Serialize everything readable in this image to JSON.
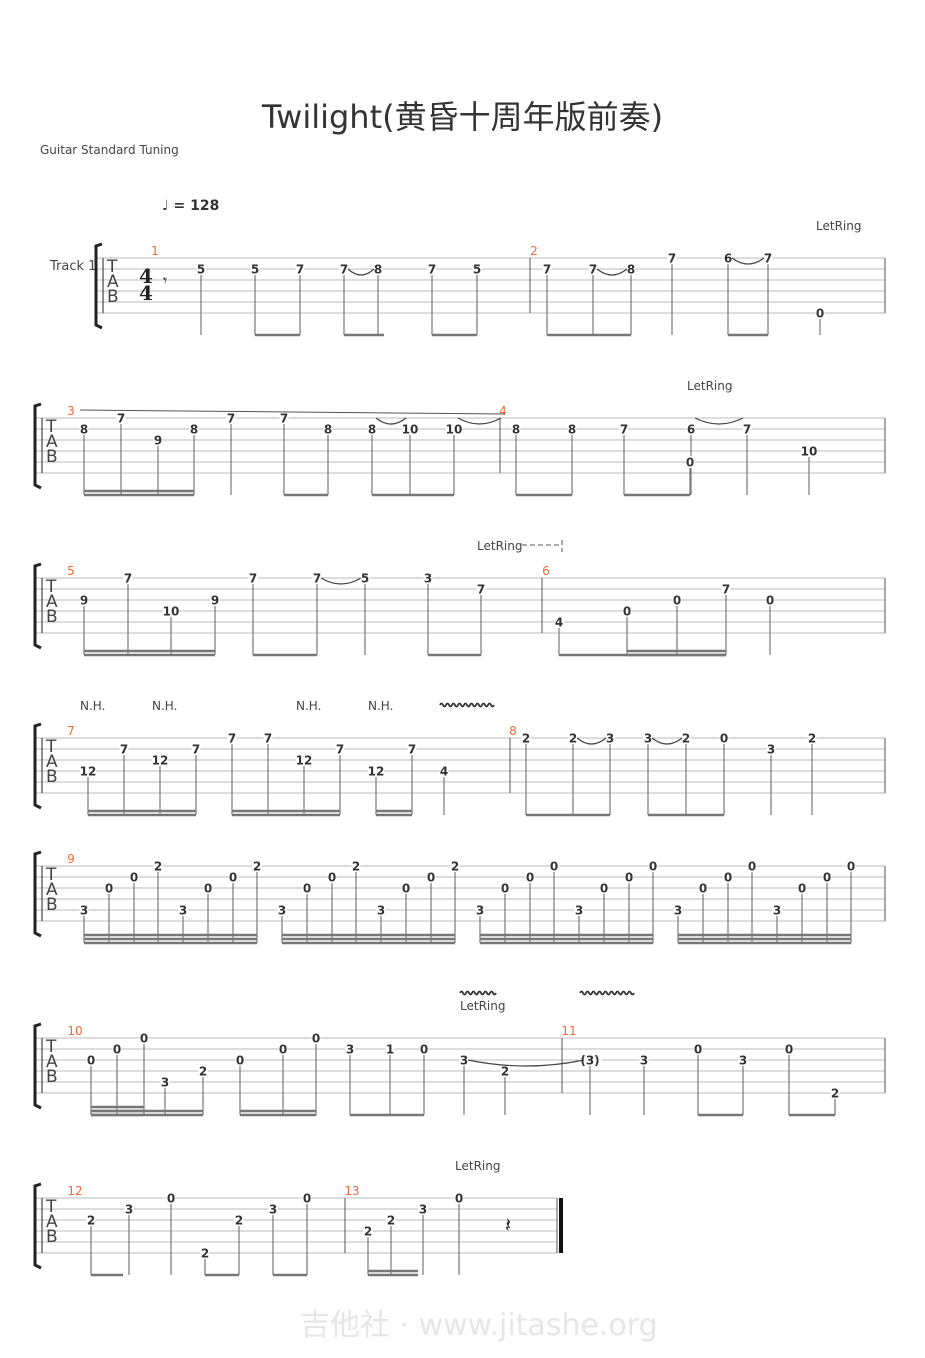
{
  "title": "Twilight(黄昏十周年版前奏)",
  "tuning": "Guitar Standard Tuning",
  "tempo": {
    "note": "quarter",
    "bpm": "= 128"
  },
  "track_name": "Track 1",
  "time_signature": [
    "4",
    "4"
  ],
  "tab_clef": [
    "T",
    "A",
    "B"
  ],
  "watermark": "吉他社 · www.jitashe.org",
  "colors": {
    "measure_number": "#f26b3a",
    "notes": "#333333",
    "staff": "#bbbbbb"
  },
  "annotations": {
    "let_ring": "LetRing",
    "natural_harmonic": "N.H."
  },
  "rows": [
    {
      "measures": [
        {
          "number": "1",
          "notes": [
            {
              "s": 2,
              "f": "5"
            },
            {
              "s": 2,
              "f": "5"
            },
            {
              "s": 2,
              "f": "7"
            },
            {
              "s": 2,
              "f": "7"
            },
            {
              "s": 2,
              "f": "8"
            },
            {
              "s": 2,
              "f": "7"
            },
            {
              "s": 2,
              "f": "5"
            }
          ]
        },
        {
          "number": "2",
          "notes": [
            {
              "s": 2,
              "f": "7"
            },
            {
              "s": 2,
              "f": "7"
            },
            {
              "s": 2,
              "f": "8"
            },
            {
              "s": 1,
              "f": "7"
            },
            {
              "s": 1,
              "f": "6"
            },
            {
              "s": 1,
              "f": "7"
            },
            {
              "s": 6,
              "f": "0"
            }
          ]
        }
      ]
    },
    {
      "measures": [
        {
          "number": "3",
          "notes": [
            {
              "s": 2,
              "f": "8"
            },
            {
              "s": 1,
              "f": "7"
            },
            {
              "s": 3,
              "f": "9"
            },
            {
              "s": 2,
              "f": "8"
            },
            {
              "s": 1,
              "f": "7"
            },
            {
              "s": 1,
              "f": "7"
            },
            {
              "s": 2,
              "f": "8"
            },
            {
              "s": 2,
              "f": "8"
            },
            {
              "s": 2,
              "f": "10"
            },
            {
              "s": 2,
              "f": "10"
            }
          ]
        },
        {
          "number": "4",
          "notes": [
            {
              "s": 2,
              "f": "8"
            },
            {
              "s": 2,
              "f": "8"
            },
            {
              "s": 2,
              "f": "7"
            },
            {
              "s": 5,
              "f": "0"
            },
            {
              "s": 2,
              "f": "6"
            },
            {
              "s": 2,
              "f": "7"
            },
            {
              "s": 4,
              "f": "10"
            }
          ]
        }
      ]
    },
    {
      "measures": [
        {
          "number": "5",
          "notes": [
            {
              "s": 3,
              "f": "9"
            },
            {
              "s": 1,
              "f": "7"
            },
            {
              "s": 4,
              "f": "10"
            },
            {
              "s": 3,
              "f": "9"
            },
            {
              "s": 1,
              "f": "7"
            },
            {
              "s": 1,
              "f": "7"
            },
            {
              "s": 1,
              "f": "5"
            },
            {
              "s": 1,
              "f": "3"
            },
            {
              "s": 2,
              "f": "7"
            }
          ]
        },
        {
          "number": "6",
          "notes": [
            {
              "s": 5,
              "f": "4"
            },
            {
              "s": 4,
              "f": "0"
            },
            {
              "s": 3,
              "f": "0"
            },
            {
              "s": 2,
              "f": "7"
            },
            {
              "s": 3,
              "f": "0"
            }
          ]
        }
      ]
    },
    {
      "measures": [
        {
          "number": "7",
          "notes": [
            {
              "s": 4,
              "f": "12"
            },
            {
              "s": 2,
              "f": "7"
            },
            {
              "s": 3,
              "f": "12"
            },
            {
              "s": 2,
              "f": "7"
            },
            {
              "s": 1,
              "f": "7"
            },
            {
              "s": 1,
              "f": "7"
            },
            {
              "s": 3,
              "f": "12"
            },
            {
              "s": 2,
              "f": "7"
            },
            {
              "s": 4,
              "f": "12"
            },
            {
              "s": 2,
              "f": "7"
            },
            {
              "s": 4,
              "f": "4"
            }
          ]
        },
        {
          "number": "8",
          "notes": [
            {
              "s": 1,
              "f": "2"
            },
            {
              "s": 1,
              "f": "2"
            },
            {
              "s": 1,
              "f": "3"
            },
            {
              "s": 1,
              "f": "3"
            },
            {
              "s": 1,
              "f": "2"
            },
            {
              "s": 1,
              "f": "0"
            },
            {
              "s": 2,
              "f": "3"
            },
            {
              "s": 1,
              "f": "2"
            }
          ]
        }
      ]
    },
    {
      "measures": [
        {
          "number": "9",
          "notes": [
            {
              "s": 5,
              "f": "3"
            },
            {
              "s": 3,
              "f": "0"
            },
            {
              "s": 2,
              "f": "0"
            },
            {
              "s": 1,
              "f": "2"
            },
            {
              "s": 5,
              "f": "3"
            },
            {
              "s": 3,
              "f": "0"
            },
            {
              "s": 2,
              "f": "0"
            },
            {
              "s": 1,
              "f": "2"
            },
            {
              "s": 5,
              "f": "3"
            },
            {
              "s": 3,
              "f": "0"
            },
            {
              "s": 2,
              "f": "0"
            },
            {
              "s": 1,
              "f": "2"
            },
            {
              "s": 5,
              "f": "3"
            },
            {
              "s": 3,
              "f": "0"
            },
            {
              "s": 2,
              "f": "0"
            },
            {
              "s": 1,
              "f": "2"
            },
            {
              "s": 5,
              "f": "3"
            },
            {
              "s": 3,
              "f": "0"
            },
            {
              "s": 2,
              "f": "0"
            },
            {
              "s": 1,
              "f": "0"
            },
            {
              "s": 5,
              "f": "3"
            },
            {
              "s": 3,
              "f": "0"
            },
            {
              "s": 2,
              "f": "0"
            },
            {
              "s": 1,
              "f": "0"
            },
            {
              "s": 5,
              "f": "3"
            },
            {
              "s": 3,
              "f": "0"
            },
            {
              "s": 2,
              "f": "0"
            },
            {
              "s": 1,
              "f": "0"
            },
            {
              "s": 5,
              "f": "3"
            },
            {
              "s": 3,
              "f": "0"
            },
            {
              "s": 2,
              "f": "0"
            },
            {
              "s": 1,
              "f": "0"
            }
          ]
        }
      ]
    },
    {
      "measures": [
        {
          "number": "10",
          "notes": [
            {
              "s": 3,
              "f": "0"
            },
            {
              "s": 2,
              "f": "0"
            },
            {
              "s": 1,
              "f": "0"
            },
            {
              "s": 5,
              "f": "3"
            },
            {
              "s": 4,
              "f": "2"
            },
            {
              "s": 3,
              "f": "0"
            },
            {
              "s": 2,
              "f": "0"
            },
            {
              "s": 1,
              "f": "0"
            },
            {
              "s": 2,
              "f": "3"
            },
            {
              "s": 2,
              "f": "1"
            },
            {
              "s": 2,
              "f": "0"
            },
            {
              "s": 3,
              "f": "3"
            },
            {
              "s": 4,
              "f": "2"
            }
          ]
        },
        {
          "number": "11",
          "notes": [
            {
              "s": 3,
              "f": "(3)"
            },
            {
              "s": 3,
              "f": "3"
            },
            {
              "s": 2,
              "f": "0"
            },
            {
              "s": 3,
              "f": "3"
            },
            {
              "s": 2,
              "f": "0"
            },
            {
              "s": 6,
              "f": "2"
            }
          ]
        }
      ]
    },
    {
      "measures": [
        {
          "number": "12",
          "notes": [
            {
              "s": 3,
              "f": "2"
            },
            {
              "s": 2,
              "f": "3"
            },
            {
              "s": 1,
              "f": "0"
            },
            {
              "s": 6,
              "f": "2"
            },
            {
              "s": 3,
              "f": "2"
            },
            {
              "s": 2,
              "f": "3"
            },
            {
              "s": 1,
              "f": "0"
            }
          ]
        },
        {
          "number": "13",
          "notes": [
            {
              "s": 4,
              "f": "2"
            },
            {
              "s": 3,
              "f": "2"
            },
            {
              "s": 2,
              "f": "3"
            },
            {
              "s": 1,
              "f": "0"
            }
          ]
        }
      ]
    }
  ]
}
